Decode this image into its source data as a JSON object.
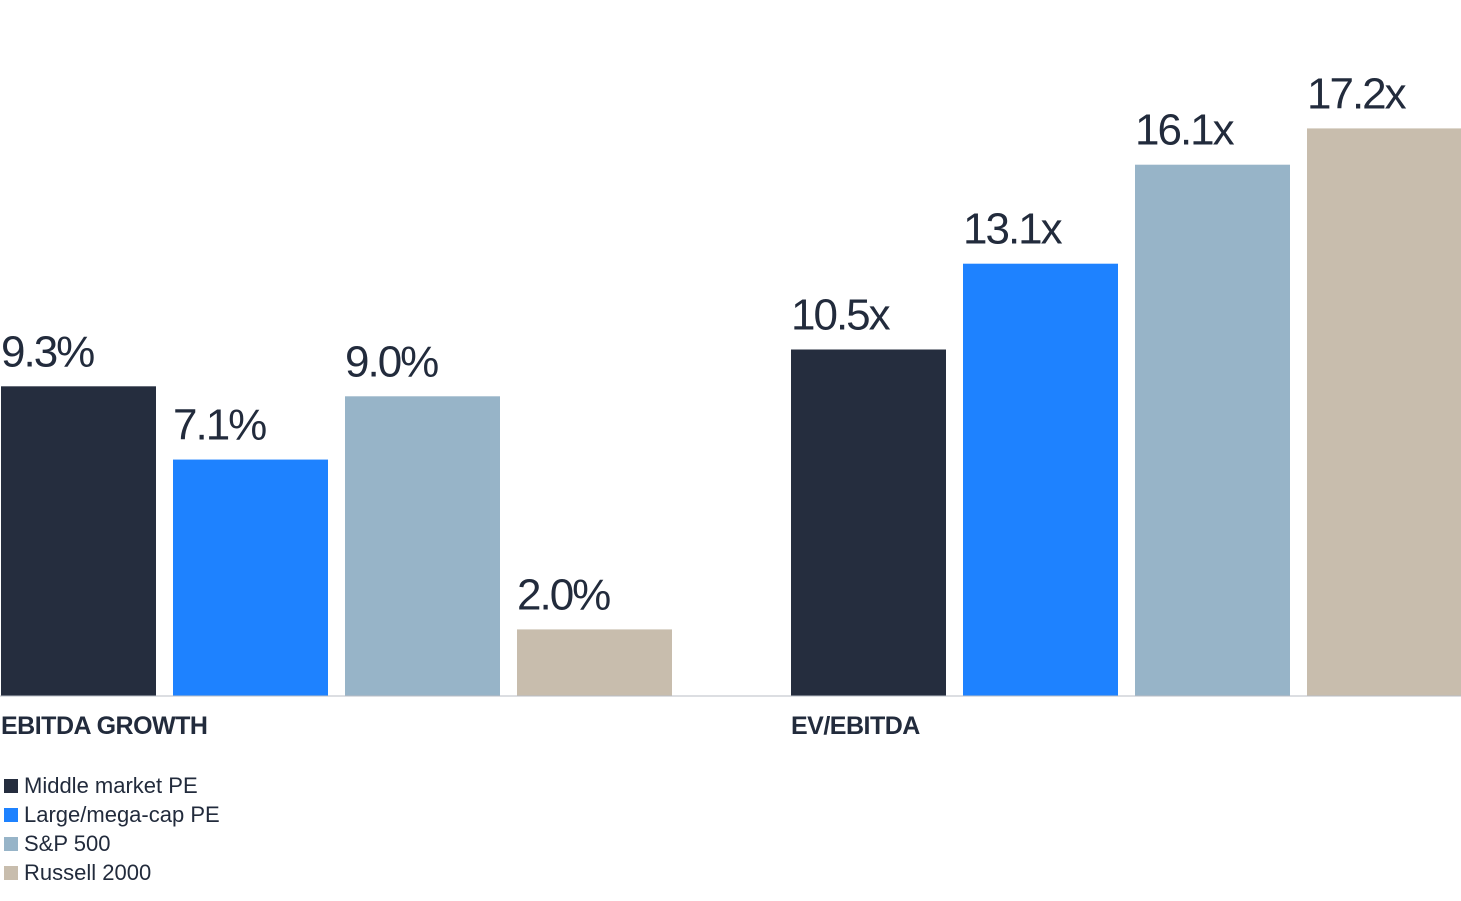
{
  "chart_data": {
    "type": "bar",
    "categories": [
      "EBITDA GROWTH",
      "EV/EBITDA"
    ],
    "series": [
      {
        "name": "Middle market PE",
        "color": "#252d3e",
        "values": [
          9.3,
          10.5
        ],
        "labels": [
          "9.3%",
          "10.5x"
        ]
      },
      {
        "name": "Large/mega-cap PE",
        "color": "#1e82ff",
        "values": [
          7.1,
          13.1
        ],
        "labels": [
          "7.1%",
          "13.1x"
        ]
      },
      {
        "name": "S&P 500",
        "color": "#97b4c8",
        "values": [
          9.0,
          16.1
        ],
        "labels": [
          "9.0%",
          "16.1x"
        ]
      },
      {
        "name": "Russell 2000",
        "color": "#c8bdad",
        "values": [
          2.0,
          17.2
        ],
        "labels": [
          "2.0%",
          "17.2x"
        ]
      }
    ],
    "legend_position": "bottom-left",
    "grid": false
  }
}
